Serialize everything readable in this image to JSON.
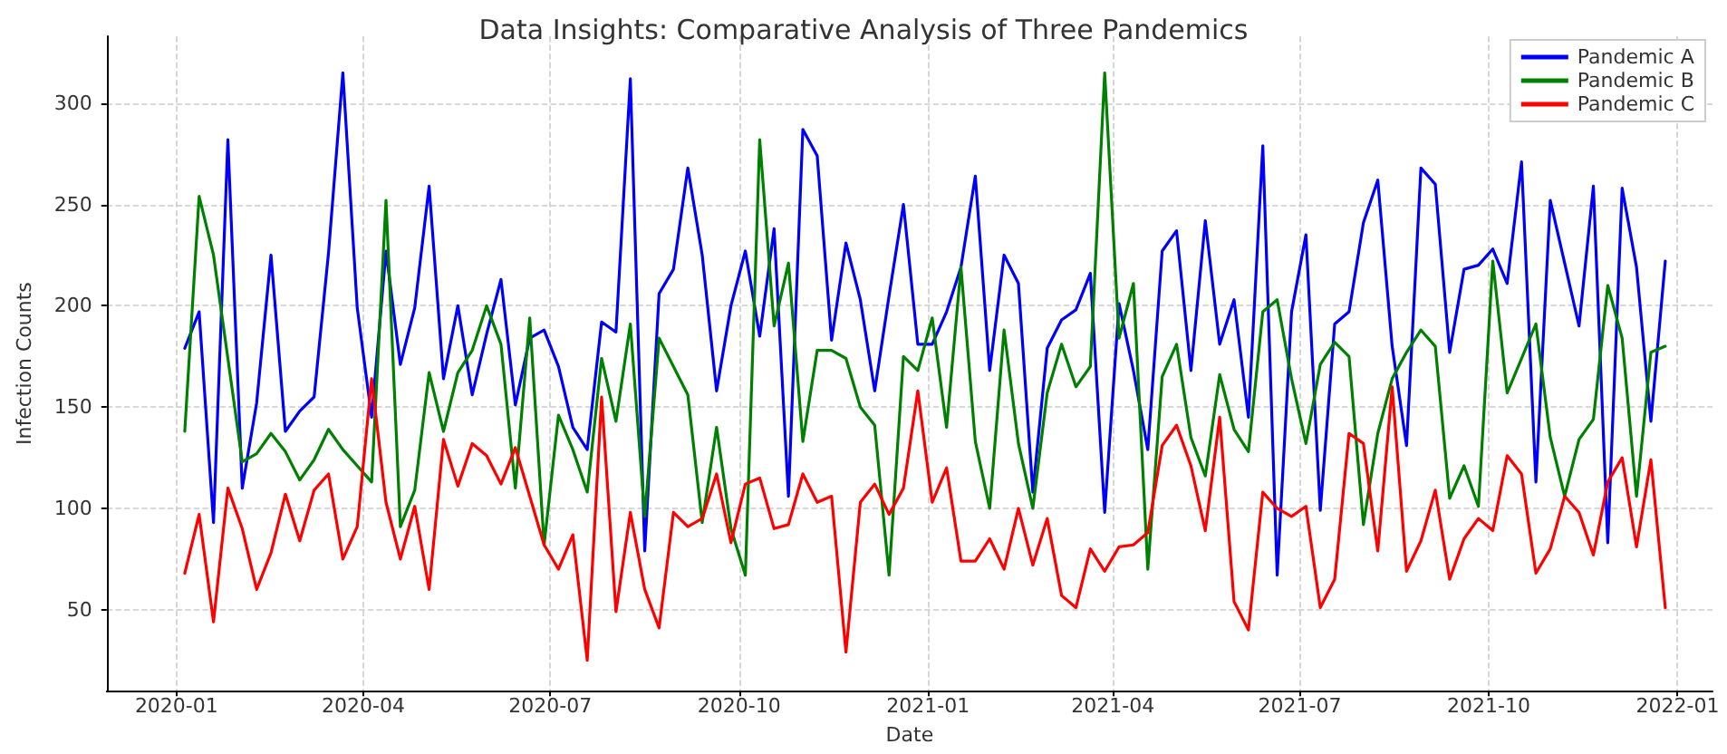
{
  "chart_data": {
    "type": "line",
    "title": "Data Insights: Comparative Analysis of Three Pandemics",
    "xlabel": "Date",
    "ylabel": "Infection Counts",
    "x": [
      "2020-01-05",
      "2020-01-12",
      "2020-01-19",
      "2020-01-26",
      "2020-02-02",
      "2020-02-09",
      "2020-02-16",
      "2020-02-23",
      "2020-03-01",
      "2020-03-08",
      "2020-03-15",
      "2020-03-22",
      "2020-03-29",
      "2020-04-05",
      "2020-04-12",
      "2020-04-19",
      "2020-04-26",
      "2020-05-03",
      "2020-05-10",
      "2020-05-17",
      "2020-05-24",
      "2020-05-31",
      "2020-06-07",
      "2020-06-14",
      "2020-06-21",
      "2020-06-28",
      "2020-07-05",
      "2020-07-12",
      "2020-07-19",
      "2020-07-26",
      "2020-08-02",
      "2020-08-09",
      "2020-08-16",
      "2020-08-23",
      "2020-08-30",
      "2020-09-06",
      "2020-09-13",
      "2020-09-20",
      "2020-09-27",
      "2020-10-04",
      "2020-10-11",
      "2020-10-18",
      "2020-10-25",
      "2020-11-01",
      "2020-11-08",
      "2020-11-15",
      "2020-11-22",
      "2020-11-29",
      "2020-12-06",
      "2020-12-13",
      "2020-12-20",
      "2020-12-27",
      "2021-01-03",
      "2021-01-10",
      "2021-01-17",
      "2021-01-24",
      "2021-01-31",
      "2021-02-07",
      "2021-02-14",
      "2021-02-21",
      "2021-02-28",
      "2021-03-07",
      "2021-03-14",
      "2021-03-21",
      "2021-03-28",
      "2021-04-04",
      "2021-04-11",
      "2021-04-18",
      "2021-04-25",
      "2021-05-02",
      "2021-05-09",
      "2021-05-16",
      "2021-05-23",
      "2021-05-30",
      "2021-06-06",
      "2021-06-13",
      "2021-06-20",
      "2021-06-27",
      "2021-07-04",
      "2021-07-11",
      "2021-07-18",
      "2021-07-25",
      "2021-08-01",
      "2021-08-08",
      "2021-08-15",
      "2021-08-22",
      "2021-08-29",
      "2021-09-05",
      "2021-09-12",
      "2021-09-19",
      "2021-09-26",
      "2021-10-03",
      "2021-10-10",
      "2021-10-17",
      "2021-10-24",
      "2021-10-31",
      "2021-11-07",
      "2021-11-14",
      "2021-11-21",
      "2021-11-28",
      "2021-12-05",
      "2021-12-12",
      "2021-12-19",
      "2021-12-26"
    ],
    "series": [
      {
        "name": "Pandemic A",
        "color": "#0000ff",
        "values": [
          179,
          197,
          93,
          282,
          110,
          152,
          225,
          138,
          148,
          155,
          226,
          315,
          199,
          145,
          227,
          171,
          199,
          259,
          164,
          200,
          156,
          186,
          213,
          151,
          184,
          188,
          170,
          140,
          129,
          192,
          187,
          312,
          79,
          206,
          218,
          268,
          225,
          158,
          200,
          227,
          185,
          238,
          106,
          287,
          274,
          183,
          231,
          203,
          158,
          205,
          250,
          181,
          181,
          197,
          219,
          264,
          168,
          225,
          211,
          108,
          179,
          193,
          198,
          216,
          98,
          201,
          168,
          129,
          227,
          237,
          168,
          242,
          181,
          203,
          145,
          279,
          67,
          197,
          235,
          99,
          191,
          197,
          241,
          262,
          180,
          131,
          268,
          260,
          177,
          218,
          220,
          228,
          211,
          271,
          113,
          252,
          221,
          190,
          259,
          83,
          258,
          219,
          143,
          222
        ]
      },
      {
        "name": "Pandemic B",
        "color": "#008000",
        "values": [
          138,
          254,
          225,
          174,
          123,
          127,
          137,
          128,
          114,
          124,
          139,
          129,
          121,
          113,
          252,
          91,
          109,
          167,
          138,
          167,
          178,
          200,
          181,
          110,
          194,
          82,
          146,
          129,
          108,
          174,
          143,
          191,
          96,
          184,
          170,
          156,
          93,
          140,
          90,
          67,
          282,
          190,
          221,
          133,
          178,
          178,
          174,
          150,
          141,
          67,
          175,
          168,
          194,
          140,
          219,
          133,
          100,
          188,
          132,
          100,
          157,
          181,
          160,
          170,
          315,
          184,
          211,
          70,
          165,
          181,
          135,
          116,
          166,
          139,
          128,
          197,
          203,
          164,
          132,
          171,
          182,
          175,
          92,
          137,
          164,
          177,
          188,
          180,
          105,
          121,
          101,
          222,
          157,
          174,
          191,
          135,
          106,
          134,
          144,
          210,
          184,
          106,
          177,
          180
        ]
      },
      {
        "name": "Pandemic C",
        "color": "#ff0000",
        "values": [
          68,
          97,
          44,
          110,
          90,
          60,
          78,
          107,
          84,
          109,
          117,
          75,
          91,
          164,
          103,
          75,
          101,
          60,
          134,
          111,
          132,
          126,
          112,
          130,
          106,
          82,
          70,
          87,
          25,
          155,
          49,
          98,
          60,
          41,
          98,
          91,
          95,
          117,
          83,
          112,
          115,
          90,
          92,
          117,
          103,
          106,
          29,
          103,
          112,
          97,
          110,
          158,
          103,
          120,
          74,
          74,
          85,
          70,
          100,
          72,
          95,
          57,
          51,
          80,
          69,
          81,
          82,
          88,
          131,
          141,
          121,
          89,
          145,
          54,
          40,
          108,
          100,
          96,
          101,
          51,
          65,
          137,
          132,
          79,
          160,
          69,
          84,
          109,
          65,
          85,
          95,
          89,
          126,
          117,
          68,
          80,
          106,
          98,
          77,
          113,
          125,
          81,
          124,
          51
        ]
      }
    ],
    "xlim": [
      "2019-11-28",
      "2022-01-18"
    ],
    "xticks": [
      "2020-01",
      "2020-04",
      "2020-07",
      "2020-10",
      "2021-01",
      "2021-04",
      "2021-07",
      "2021-10",
      "2022-01"
    ],
    "ylim": [
      10,
      333
    ],
    "yticks": [
      50,
      100,
      150,
      200,
      250,
      300
    ],
    "grid": true,
    "legend": "top right",
    "marker": "none",
    "line_style": "solid"
  }
}
